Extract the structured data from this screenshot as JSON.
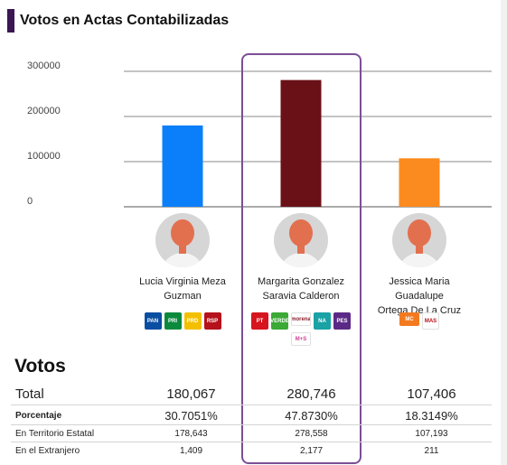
{
  "header": {
    "title": "Votos en Actas Contabilizadas",
    "accent": "#3a1652"
  },
  "chart_data": {
    "type": "bar",
    "categories": [
      "Lucia Virginia Meza Guzman",
      "Margarita Gonzalez Saravia Calderon",
      "Jessica Maria Guadalupe Ortega De La Cruz"
    ],
    "values": [
      180067,
      280746,
      107406
    ],
    "colors": [
      "#0b7ffa",
      "#6a1117",
      "#fb8b1e"
    ],
    "ylim": [
      0,
      300000
    ],
    "yticks": [
      0,
      100000,
      200000,
      300000
    ],
    "ytick_labels": [
      "0",
      "100000",
      "200000",
      "300000"
    ],
    "grid": true
  },
  "candidates": [
    {
      "name_line1": "Lucia Virginia Meza",
      "name_line2": "Guzman",
      "parties": [
        {
          "icon": "pan-logo",
          "text": "PAN",
          "color": "#0a4ea2"
        },
        {
          "icon": "pri-logo",
          "text": "PRI",
          "color": "#0b8a3d"
        },
        {
          "icon": "prd-logo",
          "text": "PRD",
          "color": "#f3c000"
        },
        {
          "icon": "rsp-logo",
          "text": "RSP",
          "color": "#b5121b"
        }
      ]
    },
    {
      "name_line1": "Margarita Gonzalez",
      "name_line2": "Saravia Calderon",
      "parties": [
        {
          "icon": "pt-logo",
          "text": "PT",
          "color": "#d7151f"
        },
        {
          "icon": "verde-logo",
          "text": "VERDE",
          "color": "#3aa935"
        },
        {
          "icon": "morena-logo",
          "text": "morena",
          "color": "#ffffff",
          "fg": "#8a1b28",
          "wide": true
        },
        {
          "icon": "nueva-alianza-logo",
          "text": "NA",
          "color": "#1aa2a5"
        },
        {
          "icon": "pes-logo",
          "text": "PES",
          "color": "#5b2a86"
        },
        {
          "icon": "mas-logo",
          "text": "M+S",
          "color": "#ffffff",
          "fg": "#d43a96",
          "wide": true
        }
      ]
    },
    {
      "name_line1": "Jessica Maria Guadalupe",
      "name_line2": "Ortega De La Cruz",
      "parties": [
        {
          "icon": "movimiento-ciudadano-logo",
          "text": "MC",
          "color": "#f47a20",
          "wide": true
        },
        {
          "icon": "movimiento-alternativa-logo",
          "text": "MAS",
          "color": "#ffffff",
          "fg": "#b5121b"
        }
      ]
    }
  ],
  "votos": {
    "title": "Votos",
    "total_label": "Total",
    "total_values": [
      "180,067",
      "280,746",
      "107,406"
    ],
    "pct_label": "Porcentaje",
    "pct_values": [
      "30.7051%",
      "47.8730%",
      "18.3149%"
    ],
    "territorio_label": "En Territorio Estatal",
    "territorio_values": [
      "178,643",
      "278,558",
      "107,193"
    ],
    "extranjero_label": "En el Extranjero",
    "extranjero_values": [
      "1,409",
      "2,177",
      "211"
    ]
  }
}
